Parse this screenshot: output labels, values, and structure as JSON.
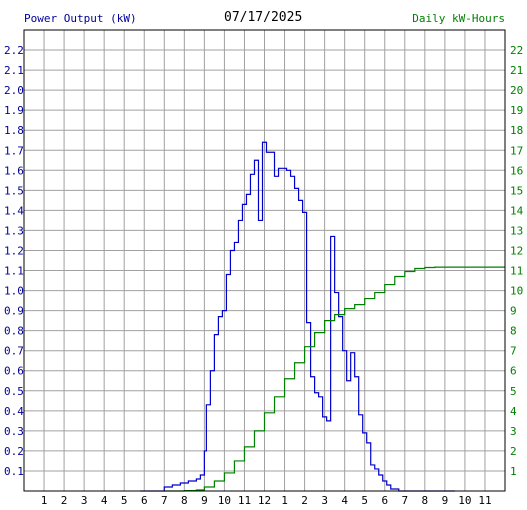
{
  "header": {
    "left_title": "Power Output (kW)",
    "date": "07/17/2025",
    "right_title": "Daily kW-Hours"
  },
  "chart_data": {
    "type": "line",
    "title": "07/17/2025",
    "xlabel": "",
    "x_ticks": [
      "1",
      "2",
      "3",
      "4",
      "5",
      "6",
      "7",
      "8",
      "9",
      "10",
      "11",
      "12",
      "1",
      "2",
      "3",
      "4",
      "5",
      "6",
      "7",
      "8",
      "9",
      "10",
      "11"
    ],
    "xlim": [
      0,
      24
    ],
    "grid": true,
    "y_left": {
      "label": "Power Output (kW)",
      "lim": [
        0,
        2.3
      ],
      "ticks": [
        "0.1",
        "0.2",
        "0.3",
        "0.4",
        "0.5",
        "0.6",
        "0.7",
        "0.8",
        "0.9",
        "1.0",
        "1.1",
        "1.2",
        "1.3",
        "1.4",
        "1.5",
        "1.6",
        "1.7",
        "1.8",
        "1.9",
        "2.0",
        "2.1",
        "2.2"
      ],
      "color": "#000099"
    },
    "y_right": {
      "label": "Daily kW-Hours",
      "lim": [
        0,
        23
      ],
      "ticks": [
        "1",
        "2",
        "3",
        "4",
        "5",
        "6",
        "7",
        "8",
        "9",
        "10",
        "11",
        "12",
        "13",
        "14",
        "15",
        "16",
        "17",
        "18",
        "19",
        "20",
        "21",
        "22"
      ],
      "color": "#008000"
    },
    "series": [
      {
        "name": "Power Output (kW)",
        "axis": "left",
        "color": "#0000cc",
        "x": [
          5.8,
          6.8,
          7.0,
          7.4,
          7.8,
          8.2,
          8.6,
          8.8,
          9.0,
          9.1,
          9.3,
          9.5,
          9.7,
          9.9,
          10.1,
          10.3,
          10.5,
          10.7,
          10.9,
          11.1,
          11.3,
          11.5,
          11.7,
          11.9,
          12.1,
          12.3,
          12.5,
          12.7,
          12.9,
          13.1,
          13.3,
          13.5,
          13.7,
          13.9,
          14.1,
          14.3,
          14.5,
          14.7,
          14.9,
          15.1,
          15.3,
          15.5,
          15.7,
          15.9,
          16.1,
          16.3,
          16.5,
          16.7,
          16.9,
          17.1,
          17.3,
          17.5,
          17.7,
          17.9,
          18.1,
          18.3,
          18.5,
          18.7,
          18.9,
          19.1,
          19.3,
          19.5,
          19.7,
          19.9,
          20.1,
          20.3,
          20.5,
          20.7,
          20.9,
          21.1,
          21.3,
          21.5
        ],
        "y": [
          0.0,
          0.0,
          0.02,
          0.03,
          0.04,
          0.05,
          0.06,
          0.08,
          0.2,
          0.43,
          0.6,
          0.78,
          0.87,
          0.9,
          1.08,
          1.2,
          1.24,
          1.35,
          1.43,
          1.48,
          1.58,
          1.65,
          1.35,
          1.74,
          1.69,
          1.69,
          1.57,
          1.61,
          1.61,
          1.6,
          1.57,
          1.51,
          1.45,
          1.39,
          0.84,
          0.57,
          0.49,
          0.47,
          0.37,
          0.35,
          1.27,
          0.99,
          0.87,
          0.7,
          0.55,
          0.69,
          0.57,
          0.38,
          0.29,
          0.24,
          0.13,
          0.11,
          0.08,
          0.05,
          0.03,
          0.01,
          0.01,
          0.0,
          0.0,
          0.0,
          0.0,
          0.0,
          0.0,
          0.0,
          0.0,
          0.0,
          0.0,
          0.0,
          0.0,
          0.0,
          0.0,
          0.0
        ]
      },
      {
        "name": "Daily kW-Hours",
        "axis": "right",
        "color": "#008000",
        "x": [
          7.0,
          8.0,
          8.6,
          9.0,
          9.5,
          10.0,
          10.5,
          11.0,
          11.5,
          12.0,
          12.5,
          13.0,
          13.5,
          14.0,
          14.5,
          15.0,
          15.5,
          16.0,
          16.5,
          17.0,
          17.5,
          18.0,
          18.5,
          19.0,
          19.5,
          20.0,
          20.5,
          21.0,
          22.0,
          23.0,
          24.0
        ],
        "y": [
          0.0,
          0.02,
          0.05,
          0.2,
          0.5,
          0.9,
          1.5,
          2.2,
          3.0,
          3.9,
          4.7,
          5.6,
          6.4,
          7.2,
          7.9,
          8.5,
          8.8,
          9.1,
          9.3,
          9.6,
          9.9,
          10.3,
          10.7,
          10.95,
          11.1,
          11.15,
          11.17,
          11.17,
          11.17,
          11.17,
          11.17
        ]
      }
    ]
  }
}
